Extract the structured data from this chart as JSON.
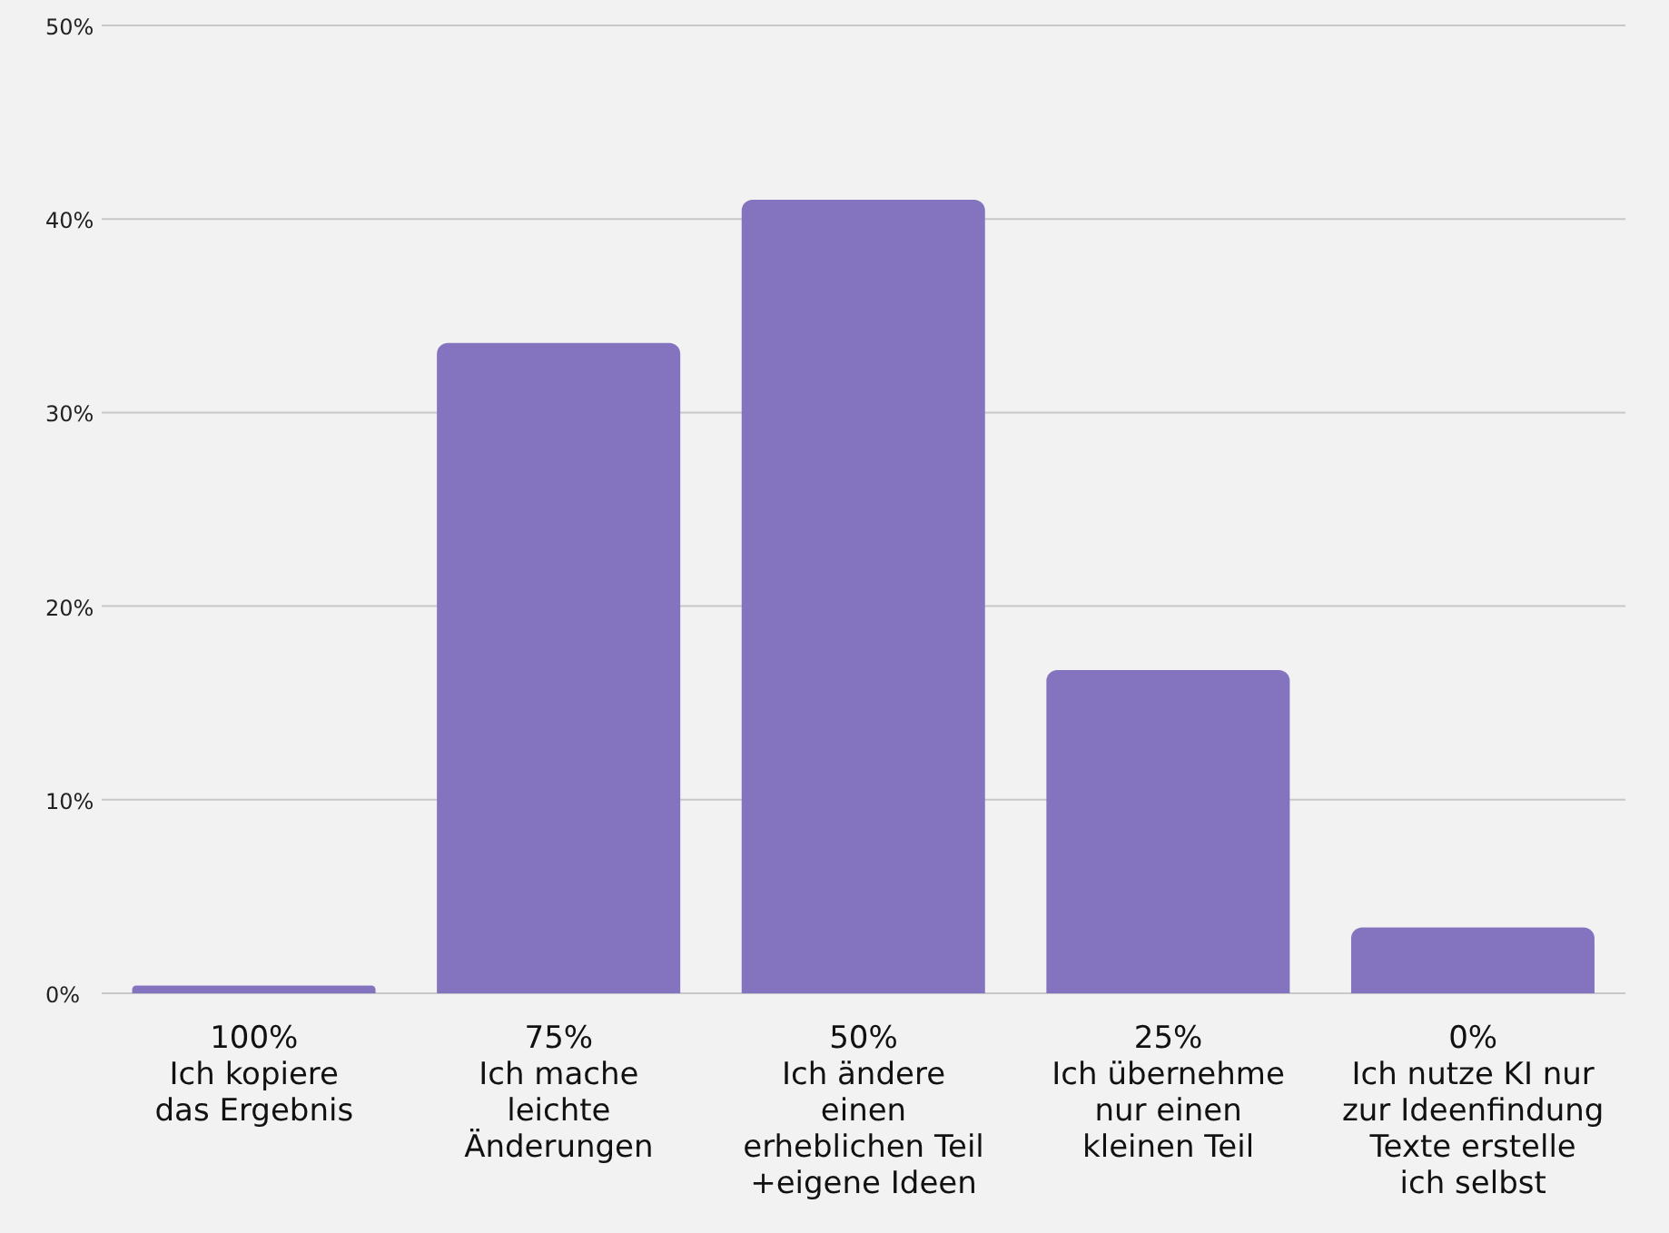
{
  "chart_data": {
    "type": "bar",
    "categories": [
      "100%\nIch kopiere\ndas Ergebnis",
      "75%\nIch mache\nleichte\nÄnderungen",
      "50%\nIch ändere\neinen\nerheblichen Teil\n+eigene Ideen",
      "25%\nIch übernehme\nnur einen\nkleinen Teil",
      "0%\nIch nutze KI nur\nzur Ideenfindung\nTexte erstelle\nich selbst"
    ],
    "values": [
      0.4,
      33.6,
      41.0,
      16.7,
      3.4
    ],
    "color": "#8473bf",
    "ylim": [
      0,
      50
    ],
    "yticks": [
      {
        "value": 0,
        "label": "0%"
      },
      {
        "value": 10,
        "label": "10%"
      },
      {
        "value": 20,
        "label": "20%"
      },
      {
        "value": 30,
        "label": "30%"
      },
      {
        "value": 40,
        "label": "40%"
      },
      {
        "value": 50,
        "label": "50%"
      }
    ],
    "grid": "y"
  }
}
